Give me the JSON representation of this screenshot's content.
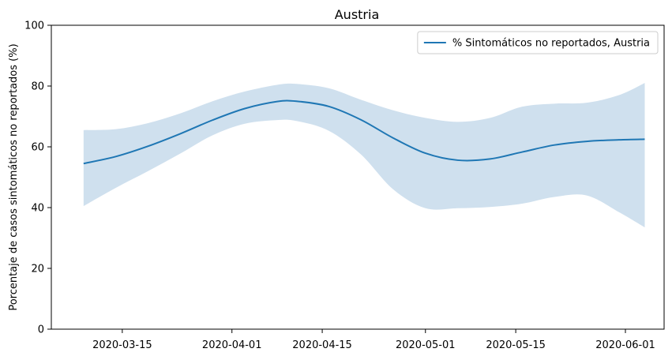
{
  "chart_data": {
    "type": "line",
    "title": "Austria",
    "xlabel": "",
    "ylabel": "Porcentaje de casos sintomáticos no reportados (%)",
    "ylim": [
      0,
      100
    ],
    "xlim": [
      "2020-03-04",
      "2020-06-07"
    ],
    "x_ticks": [
      "2020-03-15",
      "2020-04-01",
      "2020-04-15",
      "2020-05-01",
      "2020-05-15",
      "2020-06-01"
    ],
    "y_ticks": [
      0,
      20,
      40,
      60,
      80,
      100
    ],
    "grid": false,
    "legend_position": "top-right",
    "colors": {
      "line": "#1f77b4",
      "band": "#cfe0ee"
    },
    "series": [
      {
        "name": "% Sintomáticos no reportados, Austria",
        "x": [
          "2020-03-09",
          "2020-03-14",
          "2020-03-19",
          "2020-03-24",
          "2020-03-29",
          "2020-04-03",
          "2020-04-08",
          "2020-04-11",
          "2020-04-16",
          "2020-04-21",
          "2020-04-26",
          "2020-05-01",
          "2020-05-06",
          "2020-05-11",
          "2020-05-16",
          "2020-05-21",
          "2020-05-26",
          "2020-05-31",
          "2020-06-04"
        ],
        "y": [
          54.5,
          56.8,
          60.2,
          64.3,
          68.8,
          72.6,
          74.9,
          75.0,
          73.3,
          68.9,
          62.9,
          57.9,
          55.6,
          56.0,
          58.3,
          60.6,
          61.8,
          62.3,
          62.5
        ],
        "lower": [
          40.5,
          46.5,
          52.0,
          57.8,
          63.8,
          67.6,
          68.8,
          68.5,
          65.3,
          57.5,
          46.0,
          39.8,
          39.8,
          40.2,
          41.3,
          43.5,
          44.0,
          38.5,
          33.5
        ],
        "upper": [
          65.5,
          65.8,
          67.8,
          71.0,
          75.0,
          78.2,
          80.4,
          80.7,
          79.3,
          75.5,
          72.0,
          69.5,
          68.2,
          69.5,
          73.2,
          74.2,
          74.5,
          77.0,
          81.0
        ]
      }
    ]
  }
}
